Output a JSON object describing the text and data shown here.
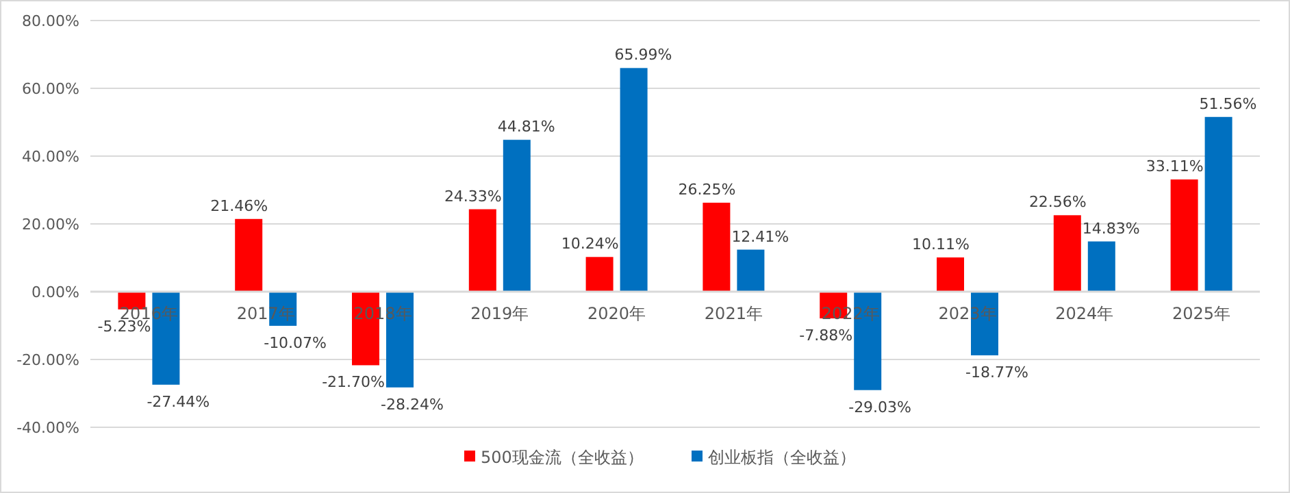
{
  "chart_data": {
    "type": "bar",
    "categories": [
      "2016年",
      "2017年",
      "2018年",
      "2019年",
      "2020年",
      "2021年",
      "2022年",
      "2023年",
      "2024年",
      "2025年"
    ],
    "series": [
      {
        "name": "500现金流（全收益）",
        "color": "#ff0000",
        "values": [
          -5.23,
          21.46,
          -21.7,
          24.33,
          10.24,
          26.25,
          -7.88,
          10.11,
          22.56,
          33.11
        ],
        "value_labels": [
          "-5.23%",
          "21.46%",
          "-21.70%",
          "24.33%",
          "10.24%",
          "26.25%",
          "-7.88%",
          "10.11%",
          "22.56%",
          "33.11%"
        ]
      },
      {
        "name": "创业板指（全收益）",
        "color": "#0070c0",
        "values": [
          -27.44,
          -10.07,
          -28.24,
          44.81,
          65.99,
          12.41,
          -29.03,
          -18.77,
          14.83,
          51.56
        ],
        "value_labels": [
          "-27.44%",
          "-10.07%",
          "-28.24%",
          "44.81%",
          "65.99%",
          "12.41%",
          "-29.03%",
          "-18.77%",
          "14.83%",
          "51.56%"
        ]
      }
    ],
    "ylim": [
      -40,
      80
    ],
    "yticks": [
      {
        "value": -40,
        "label": "-40.00%"
      },
      {
        "value": -20,
        "label": "-20.00%"
      },
      {
        "value": 0,
        "label": "0.00%"
      },
      {
        "value": 20,
        "label": "20.00%"
      },
      {
        "value": 40,
        "label": "40.00%"
      },
      {
        "value": 60,
        "label": "60.00%"
      },
      {
        "value": 80,
        "label": "80.00%"
      }
    ],
    "grid": "y",
    "legend": "bottom"
  }
}
